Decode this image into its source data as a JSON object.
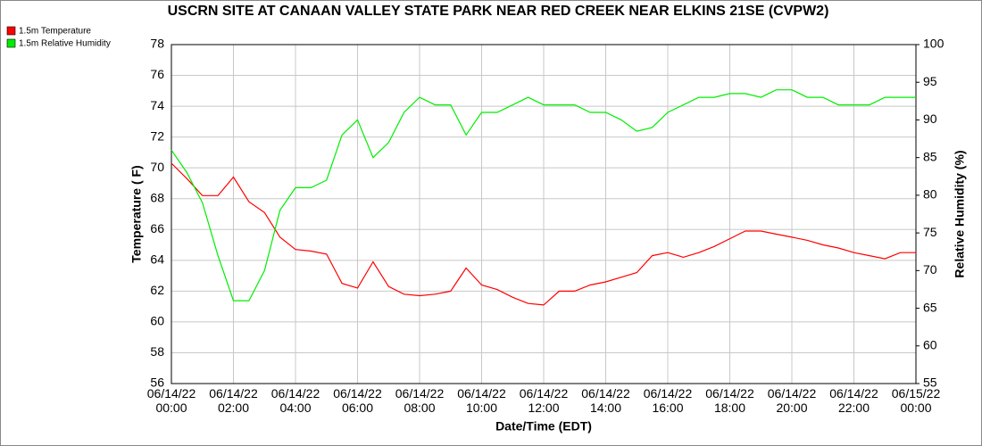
{
  "chart_data": {
    "type": "line",
    "title": "USCRN SITE AT CANAAN VALLEY STATE PARK NEAR RED CREEK NEAR ELKINS 21SE (CVPW2)",
    "x_label": "Date/Time (EDT)",
    "y_label": "Temperature ( F)",
    "y2_label": "Relative Humidity (%)",
    "x": [
      "06/14/22 00:00",
      "06/14/22 00:30",
      "06/14/22 01:00",
      "06/14/22 01:30",
      "06/14/22 02:00",
      "06/14/22 02:30",
      "06/14/22 03:00",
      "06/14/22 03:30",
      "06/14/22 04:00",
      "06/14/22 04:30",
      "06/14/22 05:00",
      "06/14/22 05:30",
      "06/14/22 06:00",
      "06/14/22 06:30",
      "06/14/22 07:00",
      "06/14/22 07:30",
      "06/14/22 08:00",
      "06/14/22 08:30",
      "06/14/22 09:00",
      "06/14/22 09:30",
      "06/14/22 10:00",
      "06/14/22 10:30",
      "06/14/22 11:00",
      "06/14/22 11:30",
      "06/14/22 12:00",
      "06/14/22 12:30",
      "06/14/22 13:00",
      "06/14/22 13:30",
      "06/14/22 14:00",
      "06/14/22 14:30",
      "06/14/22 15:00",
      "06/14/22 15:30",
      "06/14/22 16:00",
      "06/14/22 16:30",
      "06/14/22 17:00",
      "06/14/22 17:30",
      "06/14/22 18:00",
      "06/14/22 18:30",
      "06/14/22 19:00",
      "06/14/22 19:30",
      "06/14/22 20:00",
      "06/14/22 20:30",
      "06/14/22 21:00",
      "06/14/22 21:30",
      "06/14/22 22:00",
      "06/14/22 22:30",
      "06/14/22 23:00",
      "06/14/22 23:30",
      "06/15/22 00:00"
    ],
    "series": [
      {
        "name": "1.5m Temperature",
        "color": "#ff0000",
        "axis": "y",
        "values": [
          70.3,
          69.3,
          68.2,
          68.2,
          69.4,
          67.8,
          67.1,
          65.5,
          64.7,
          64.6,
          64.4,
          62.5,
          62.2,
          63.9,
          62.3,
          61.8,
          61.7,
          61.8,
          62.0,
          63.5,
          62.4,
          62.1,
          61.6,
          61.2,
          61.1,
          62.0,
          62.0,
          62.4,
          62.6,
          62.9,
          63.2,
          64.3,
          64.5,
          64.2,
          64.5,
          64.9,
          65.4,
          65.9,
          65.9,
          65.7,
          65.5,
          65.3,
          65.0,
          64.8,
          64.5,
          64.3,
          64.1,
          64.5,
          64.5
        ]
      },
      {
        "name": "1.5m Relative Humidity",
        "color": "#00ee00",
        "axis": "y2",
        "values": [
          86,
          83,
          79,
          72,
          66,
          66,
          70,
          78,
          81,
          81,
          82,
          88,
          90,
          85,
          87,
          91,
          93,
          92,
          92,
          88,
          91,
          91,
          92,
          93,
          92,
          92,
          92,
          91,
          91,
          90,
          88.5,
          89,
          91,
          92,
          93,
          93,
          93.5,
          93.5,
          93,
          94,
          94,
          93,
          93,
          92,
          92,
          92,
          93,
          93,
          93
        ]
      }
    ],
    "xlim": [
      "06/14/22 00:00",
      "06/15/22 00:00"
    ],
    "xticks": [
      "06/14/22 00:00",
      "06/14/22 02:00",
      "06/14/22 04:00",
      "06/14/22 06:00",
      "06/14/22 08:00",
      "06/14/22 10:00",
      "06/14/22 12:00",
      "06/14/22 14:00",
      "06/14/22 16:00",
      "06/14/22 18:00",
      "06/14/22 20:00",
      "06/14/22 22:00",
      "06/15/22 00:00"
    ],
    "ylim": [
      56,
      78
    ],
    "yticks": [
      56,
      58,
      60,
      62,
      64,
      66,
      68,
      70,
      72,
      74,
      76,
      78
    ],
    "y2lim": [
      55,
      100
    ],
    "y2ticks": [
      55,
      60,
      65,
      70,
      75,
      80,
      85,
      90,
      95,
      100
    ],
    "grid": true,
    "legend": "top-left"
  }
}
